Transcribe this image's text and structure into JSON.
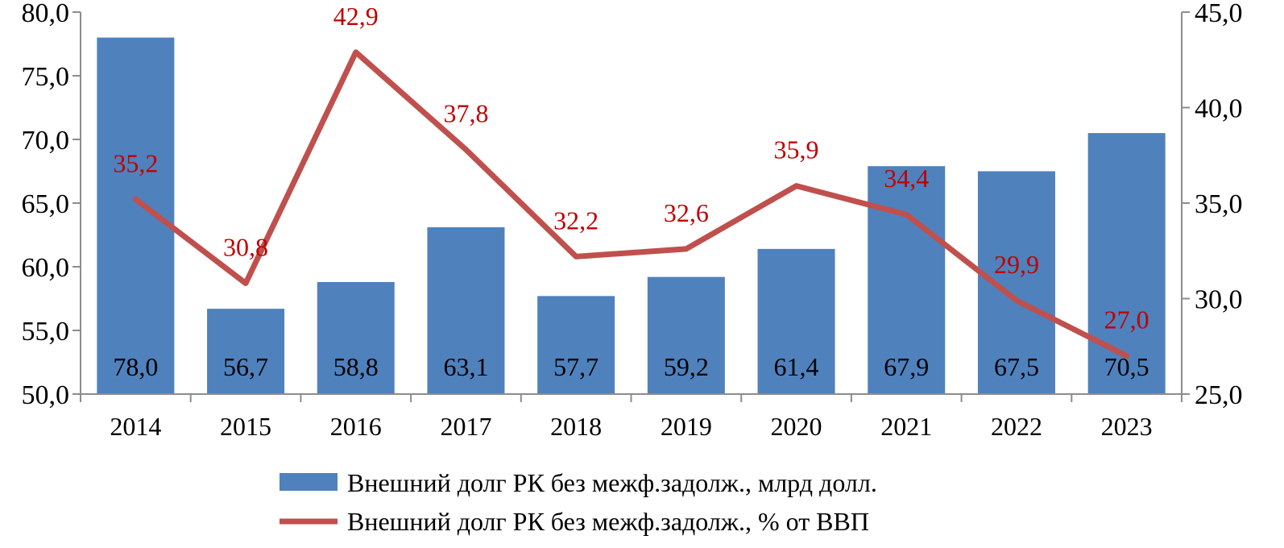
{
  "chart_data": {
    "type": "bar+line",
    "categories": [
      "2014",
      "2015",
      "2016",
      "2017",
      "2018",
      "2019",
      "2020",
      "2021",
      "2022",
      "2023"
    ],
    "series": [
      {
        "name": "Внешний долг РК без межф.задолж., млрд долл.",
        "type": "bar",
        "axis": "left",
        "values": [
          78.0,
          56.7,
          58.8,
          63.1,
          57.7,
          59.2,
          61.4,
          67.9,
          67.5,
          70.5
        ],
        "labels": [
          "78,0",
          "56,7",
          "58,8",
          "63,1",
          "57,7",
          "59,2",
          "61,4",
          "67,9",
          "67,5",
          "70,5"
        ],
        "color": "#4f81bd"
      },
      {
        "name": "Внешний долг РК без межф.задолж., % от ВВП",
        "type": "line",
        "axis": "right",
        "values": [
          35.2,
          30.8,
          42.9,
          37.8,
          32.2,
          32.6,
          35.9,
          34.4,
          29.9,
          27.0
        ],
        "labels": [
          "35,2",
          "30,8",
          "42,9",
          "37,8",
          "32,2",
          "32,6",
          "35,9",
          "34,4",
          "29,9",
          "27,0"
        ],
        "color": "#c0504d",
        "label_color": "#c00000"
      }
    ],
    "y_left": {
      "range": [
        50,
        80
      ],
      "ticks": [
        "50,0",
        "55,0",
        "60,0",
        "65,0",
        "70,0",
        "75,0",
        "80,0"
      ]
    },
    "y_right": {
      "range": [
        25,
        45
      ],
      "ticks": [
        "25,0",
        "30,0",
        "35,0",
        "40,0",
        "45,0"
      ]
    },
    "grid": false,
    "legend_position": "bottom"
  }
}
